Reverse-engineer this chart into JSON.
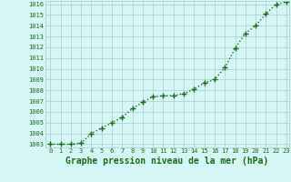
{
  "x": [
    0,
    1,
    2,
    3,
    4,
    5,
    6,
    7,
    8,
    9,
    10,
    11,
    12,
    13,
    14,
    15,
    16,
    17,
    18,
    19,
    20,
    21,
    22,
    23
  ],
  "y": [
    1003.0,
    1003.0,
    1003.0,
    1003.1,
    1004.0,
    1004.5,
    1005.0,
    1005.5,
    1006.3,
    1006.9,
    1007.4,
    1007.5,
    1007.5,
    1007.7,
    1008.1,
    1008.7,
    1009.0,
    1010.1,
    1011.9,
    1013.3,
    1014.0,
    1015.1,
    1016.0,
    1016.2
  ],
  "line_color": "#1a6b1a",
  "marker": "+",
  "marker_size": 4,
  "linewidth": 1.0,
  "bg_color": "#d6f5f5",
  "grid_color": "#aacccc",
  "xlabel": "Graphe pression niveau de la mer (hPa)",
  "xlabel_fontsize": 7,
  "tick_fontsize": 5,
  "ylim_min": 1003,
  "ylim_max": 1016,
  "xlim_min": 0,
  "xlim_max": 23,
  "yticks": [
    1003,
    1004,
    1005,
    1006,
    1007,
    1008,
    1009,
    1010,
    1011,
    1012,
    1013,
    1014,
    1015,
    1016
  ],
  "xticks": [
    0,
    1,
    2,
    3,
    4,
    5,
    6,
    7,
    8,
    9,
    10,
    11,
    12,
    13,
    14,
    15,
    16,
    17,
    18,
    19,
    20,
    21,
    22,
    23
  ]
}
